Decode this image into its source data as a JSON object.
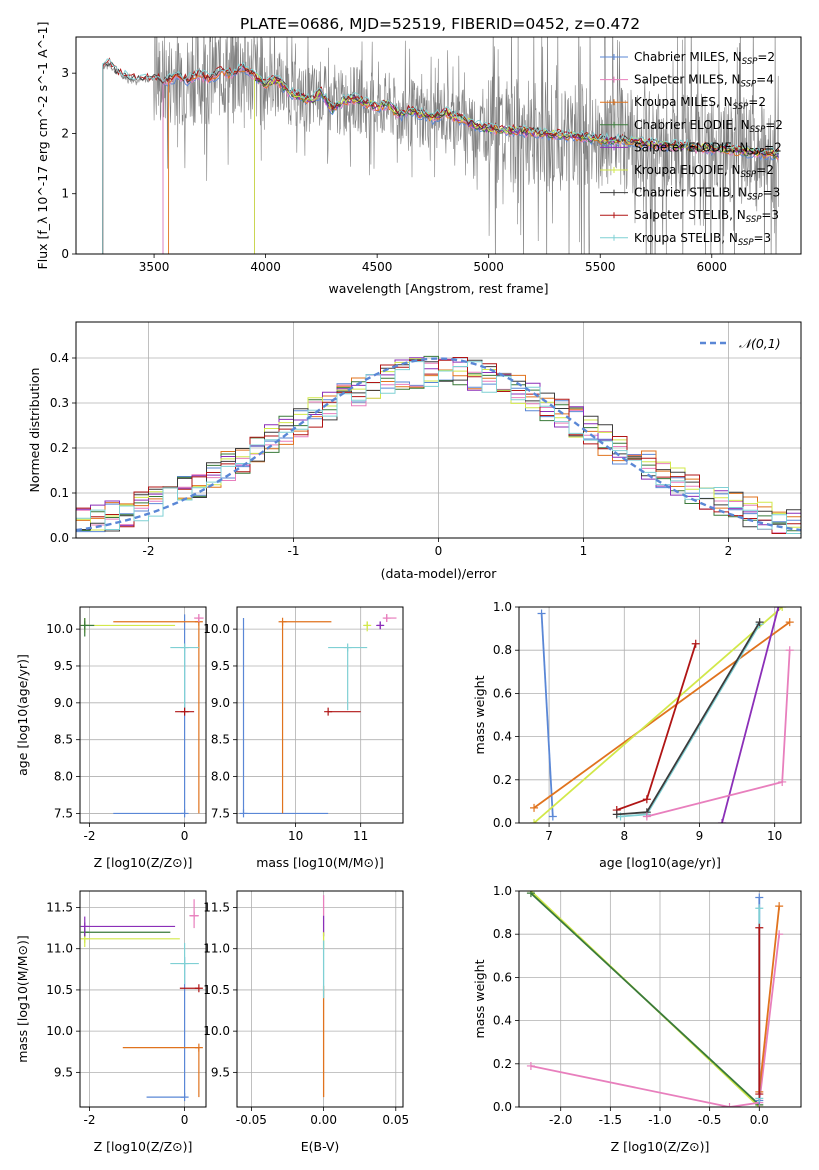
{
  "figure": {
    "title": "PLATE=0686, MJD=52519, FIBERID=0452, z=0.472"
  },
  "chart_data": [
    {
      "id": "spectrum",
      "type": "line",
      "xlabel": "wavelength [Angstrom, rest frame]",
      "ylabel": "Flux [f_λ 10^-17 erg cm^-2 s^-1 A^-1]",
      "xlim": [
        3150,
        6400
      ],
      "ylim": [
        0,
        3.6
      ],
      "xticks": [
        3500,
        4000,
        4500,
        5000,
        5500,
        6000
      ],
      "yticks": [
        0,
        1,
        2,
        3
      ],
      "legend_position": "top-right",
      "data_color": "#808080",
      "series": [
        {
          "name": "Chabrier MILES, N_SSP=2",
          "label_main": "Chabrier MILES, N",
          "label_sub": "SSP",
          "label_end": "=2",
          "color": "#5a87d6",
          "start": 3540
        },
        {
          "name": "Salpeter MILES, N_SSP=4",
          "label_main": "Salpeter MILES, N",
          "label_sub": "SSP",
          "label_end": "=4",
          "color": "#e87fbd",
          "start": 3540
        },
        {
          "name": "Kroupa MILES, N_SSP=2",
          "label_main": "Kroupa MILES, N",
          "label_sub": "SSP",
          "label_end": "=2",
          "color": "#e0731e",
          "start": 3565
        },
        {
          "name": "Chabrier ELODIE, N_SSP=2",
          "label_main": "Chabrier ELODIE, N",
          "label_sub": "SSP",
          "label_end": "=2",
          "color": "#3a7a3a",
          "start": 3950
        },
        {
          "name": "Salpeter ELODIE, N_SSP=2",
          "label_main": "Salpeter ELODIE, N",
          "label_sub": "SSP",
          "label_end": "=2",
          "color": "#8b2fb8",
          "start": 3950
        },
        {
          "name": "Kroupa ELODIE, N_SSP=2",
          "label_main": "Kroupa ELODIE, N",
          "label_sub": "SSP",
          "label_end": "=2",
          "color": "#d2e84a",
          "start": 3950
        },
        {
          "name": "Chabrier STELIB, N_SSP=3",
          "label_main": "Chabrier STELIB, N",
          "label_sub": "SSP",
          "label_end": "=3",
          "color": "#3c3c3c",
          "start": 3270
        },
        {
          "name": "Salpeter STELIB, N_SSP=3",
          "label_main": "Salpeter STELIB, N",
          "label_sub": "SSP",
          "label_end": "=3",
          "color": "#b01515",
          "start": 3270
        },
        {
          "name": "Kroupa STELIB, N_SSP=3",
          "label_main": "Kroupa STELIB, N",
          "label_sub": "SSP",
          "label_end": "=3",
          "color": "#7fd0d4",
          "start": 3270
        }
      ],
      "model_shape": {
        "x": [
          3270,
          3300,
          3320,
          3360,
          3400,
          3450,
          3500,
          3550,
          3600,
          3650,
          3700,
          3750,
          3800,
          3850,
          3900,
          3950,
          4000,
          4050,
          4100,
          4150,
          4200,
          4250,
          4300,
          4350,
          4400,
          4450,
          4500,
          4550,
          4600,
          4650,
          4700,
          4750,
          4800,
          4850,
          4900,
          4950,
          5000,
          5100,
          5200,
          5300,
          5400,
          5500,
          5600,
          5700,
          5800,
          5900,
          6000,
          6100,
          6200,
          6300
        ],
        "y": [
          3.1,
          3.15,
          3.05,
          2.95,
          2.9,
          2.88,
          2.92,
          2.85,
          2.95,
          2.88,
          2.98,
          2.9,
          3.05,
          2.98,
          3.1,
          2.95,
          2.82,
          2.9,
          2.7,
          2.62,
          2.55,
          2.68,
          2.4,
          2.55,
          2.58,
          2.5,
          2.45,
          2.48,
          2.3,
          2.38,
          2.32,
          2.25,
          2.35,
          2.28,
          2.2,
          2.12,
          2.08,
          2.05,
          2.02,
          1.98,
          1.95,
          1.9,
          1.88,
          1.85,
          1.8,
          1.78,
          1.75,
          1.72,
          1.68,
          1.65
        ]
      }
    },
    {
      "id": "residuals",
      "type": "line",
      "xlabel": "(data-model)/error",
      "ylabel": "Normed distribution",
      "xlim": [
        -2.5,
        2.5
      ],
      "ylim": [
        0,
        0.48
      ],
      "xticks": [
        -2,
        -1,
        0,
        1,
        2
      ],
      "yticks": [
        0.0,
        0.1,
        0.2,
        0.3,
        0.4
      ],
      "grid": true,
      "legend_position": "top-right",
      "reference": {
        "name": "𝒩(0,1)",
        "color": "#5a87d6",
        "dash": "6,4"
      },
      "bin_width": 0.1
    },
    {
      "id": "age-vs-Z",
      "type": "scatter",
      "xlabel": "Z [log10(Z/Z⊙)]",
      "ylabel": "age [log10(age/yr)]",
      "xlim": [
        -2.2,
        0.45
      ],
      "ylim": [
        7.37,
        10.3
      ],
      "xticks": [
        -2,
        0
      ],
      "yticks": [
        7.5,
        8.0,
        8.5,
        9.0,
        9.5,
        10.0
      ],
      "grid": true,
      "points": [
        {
          "series": "Chabrier MILES",
          "x": 0.0,
          "y": 7.5,
          "xerr": [
            0.0,
            0.0
          ],
          "yerr": [
            0.0,
            2.7
          ],
          "hline": [
            -1.5,
            0.0
          ]
        },
        {
          "series": "Kroupa MILES",
          "x": 0.3,
          "y": 10.1,
          "xerr": [
            1.8,
            0.0
          ],
          "yerr": [
            2.6,
            0.0
          ]
        },
        {
          "series": "Salpeter MILES",
          "x": 0.3,
          "y": 10.15,
          "xerr": [
            0.1,
            0.1
          ],
          "yerr": [
            0.05,
            0.05
          ]
        },
        {
          "series": "Kroupa ELODIE",
          "x": -2.1,
          "y": 10.05,
          "xerr": [
            0.0,
            1.9
          ],
          "yerr": [
            0.1,
            0.1
          ]
        },
        {
          "series": "Chabrier ELODIE",
          "x": -2.1,
          "y": 10.05,
          "xerr": [
            0.0,
            0.2
          ],
          "yerr": [
            0.15,
            0.1
          ]
        },
        {
          "series": "Kroupa STELIB",
          "x": 0.0,
          "y": 9.75,
          "xerr": [
            0.3,
            0.3
          ],
          "yerr": [
            0.9,
            0.0
          ]
        },
        {
          "series": "Salpeter STELIB",
          "x": 0.0,
          "y": 8.88,
          "xerr": [
            0.2,
            0.2
          ],
          "yerr": [
            0.0,
            0.0
          ]
        }
      ]
    },
    {
      "id": "age-vs-mass",
      "type": "scatter",
      "xlabel": "mass [log10(M/M⊙)]",
      "ylabel": "",
      "xlim": [
        9.1,
        11.65
      ],
      "ylim": [
        7.37,
        10.3
      ],
      "xticks": [
        10,
        11
      ],
      "yticks": [
        7.5,
        8.0,
        8.5,
        9.0,
        9.5,
        10.0
      ],
      "grid": true,
      "points": [
        {
          "series": "Chabrier MILES",
          "x": 9.2,
          "y": 7.5,
          "xerr": [
            0.0,
            1.3
          ],
          "yerr": [
            0.0,
            2.65
          ]
        },
        {
          "series": "Kroupa MILES",
          "x": 9.8,
          "y": 10.1,
          "xerr": [
            0.0,
            0.75
          ],
          "yerr": [
            2.6,
            0.0
          ]
        },
        {
          "series": "Salpeter MILES",
          "x": 11.4,
          "y": 10.15,
          "xerr": [
            0.05,
            0.15
          ],
          "yerr": [
            0.05,
            0.05
          ]
        },
        {
          "series": "Kroupa ELODIE",
          "x": 11.1,
          "y": 10.05,
          "xerr": [
            0.05,
            0.05
          ],
          "yerr": [
            0.08,
            0.05
          ]
        },
        {
          "series": "Salpeter ELODIE",
          "x": 11.3,
          "y": 10.05,
          "xerr": [
            0.05,
            0.05
          ],
          "yerr": [
            0.05,
            0.05
          ]
        },
        {
          "series": "Kroupa STELIB",
          "x": 10.8,
          "y": 9.75,
          "xerr": [
            0.3,
            0.3
          ],
          "yerr": [
            0.85,
            0.0
          ]
        },
        {
          "series": "Salpeter STELIB",
          "x": 10.5,
          "y": 8.88,
          "xerr": [
            0.0,
            0.5
          ],
          "yerr": [
            0.0,
            0.0
          ]
        }
      ]
    },
    {
      "id": "massweight-vs-age",
      "type": "line",
      "xlabel": "age [log10(age/yr)]",
      "ylabel": "mass weight",
      "xlim": [
        6.6,
        10.35
      ],
      "ylim": [
        0,
        1.0
      ],
      "xticks": [
        7,
        8,
        9,
        10
      ],
      "yticks": [
        0.0,
        0.2,
        0.4,
        0.6,
        0.8,
        1.0
      ],
      "grid": true,
      "lines": [
        {
          "series": "Chabrier MILES",
          "x": [
            6.9,
            7.05
          ],
          "y": [
            0.97,
            0.03
          ]
        },
        {
          "series": "Kroupa MILES",
          "x": [
            6.8,
            10.2
          ],
          "y": [
            0.07,
            0.93
          ]
        },
        {
          "series": "Kroupa ELODIE",
          "x": [
            6.8,
            10.1
          ],
          "y": [
            0.0,
            1.0
          ]
        },
        {
          "series": "Salpeter STELIB",
          "x": [
            7.9,
            8.3,
            8.95
          ],
          "y": [
            0.06,
            0.11,
            0.83
          ]
        },
        {
          "series": "Kroupa STELIB",
          "x": [
            7.95,
            8.3,
            9.8
          ],
          "y": [
            0.03,
            0.04,
            0.92
          ]
        },
        {
          "series": "Chabrier STELIB",
          "x": [
            7.9,
            8.3,
            9.8
          ],
          "y": [
            0.04,
            0.05,
            0.93
          ]
        },
        {
          "series": "Salpeter ELODIE",
          "x": [
            9.3,
            10.05
          ],
          "y": [
            0.0,
            1.0
          ]
        },
        {
          "series": "Salpeter MILES",
          "x": [
            8.3,
            10.1,
            10.2
          ],
          "y": [
            0.03,
            0.19,
            0.8
          ]
        }
      ]
    },
    {
      "id": "mass-vs-Z",
      "type": "scatter",
      "xlabel": "Z [log10(Z/Z⊙)]",
      "ylabel": "mass [log10(M/M⊙)]",
      "xlim": [
        -2.2,
        0.45
      ],
      "ylim": [
        9.08,
        11.7
      ],
      "xticks": [
        -2,
        0
      ],
      "yticks": [
        9.5,
        10.0,
        10.5,
        11.0,
        11.5
      ],
      "grid": true,
      "points": [
        {
          "series": "Chabrier MILES",
          "x": 0.0,
          "y": 9.2,
          "xerr": [
            0.8,
            0.0
          ],
          "yerr": [
            0.0,
            1.7
          ]
        },
        {
          "series": "Kroupa MILES",
          "x": 0.3,
          "y": 9.8,
          "xerr": [
            1.6,
            0.0
          ],
          "yerr": [
            0.6,
            0.0
          ]
        },
        {
          "series": "Salpeter STELIB",
          "x": 0.3,
          "y": 10.52,
          "xerr": [
            0.4,
            0.0
          ],
          "yerr": [
            0.0,
            0.0
          ]
        },
        {
          "series": "Kroupa STELIB",
          "x": 0.0,
          "y": 10.82,
          "xerr": [
            0.3,
            0.3
          ],
          "yerr": [
            0.25,
            0.25
          ]
        },
        {
          "series": "Kroupa ELODIE",
          "x": -2.1,
          "y": 11.12,
          "xerr": [
            0.0,
            2.0
          ],
          "yerr": [
            0.1,
            0.1
          ]
        },
        {
          "series": "Chabrier ELODIE",
          "x": -2.1,
          "y": 11.2,
          "xerr": [
            0.0,
            1.8
          ],
          "yerr": [
            0.05,
            0.05
          ]
        },
        {
          "series": "Salpeter ELODIE",
          "x": -2.1,
          "y": 11.27,
          "xerr": [
            0.0,
            1.9
          ],
          "yerr": [
            0.12,
            0.12
          ]
        },
        {
          "series": "Salpeter MILES",
          "x": 0.2,
          "y": 11.4,
          "xerr": [
            0.1,
            0.1
          ],
          "yerr": [
            0.15,
            0.2
          ]
        }
      ]
    },
    {
      "id": "mass-vs-ebv",
      "type": "scatter",
      "xlabel": "E(B-V)",
      "ylabel": "",
      "xlim": [
        -0.06,
        0.055
      ],
      "ylim": [
        9.08,
        11.7
      ],
      "xticks": [
        -0.05,
        0.0,
        0.05
      ],
      "yticks": [
        9.5,
        10.0,
        10.5,
        11.0,
        11.5
      ],
      "grid": true,
      "segments": [
        {
          "series": "Kroupa MILES",
          "x": 0.0,
          "y0": 9.2,
          "y1": 10.55
        },
        {
          "series": "Salpeter MILES",
          "x": 0.0,
          "y0": 11.4,
          "y1": 11.65
        },
        {
          "series": "Salpeter ELODIE",
          "x": 0.0,
          "y0": 11.15,
          "y1": 11.4
        },
        {
          "series": "Kroupa ELODIE",
          "x": 0.0,
          "y0": 11.0,
          "y1": 11.2
        },
        {
          "series": "Kroupa STELIB",
          "x": 0.0,
          "y0": 10.4,
          "y1": 11.1
        }
      ]
    },
    {
      "id": "massweight-vs-Z",
      "type": "line",
      "xlabel": "Z [log10(Z/Z⊙)]",
      "ylabel": "mass weight",
      "xlim": [
        -2.42,
        0.42
      ],
      "ylim": [
        0,
        1.0
      ],
      "xticks": [
        -2.0,
        -1.5,
        -1.0,
        -0.5,
        0.0
      ],
      "yticks": [
        0.0,
        0.2,
        0.4,
        0.6,
        0.8,
        1.0
      ],
      "grid": true,
      "lines": [
        {
          "series": "Kroupa ELODIE",
          "x": [
            -2.3,
            0.0
          ],
          "y": [
            1.0,
            0.0
          ]
        },
        {
          "series": "Chabrier ELODIE",
          "x": [
            -2.3,
            0.0
          ],
          "y": [
            0.99,
            0.01
          ]
        },
        {
          "series": "Salpeter MILES",
          "x": [
            -2.3,
            -0.3,
            0.0,
            0.2
          ],
          "y": [
            0.19,
            0.0,
            0.02,
            0.8
          ]
        },
        {
          "series": "Kroupa MILES",
          "x": [
            0.0,
            0.2
          ],
          "y": [
            0.07,
            0.93
          ]
        },
        {
          "series": "Chabrier MILES",
          "x": [
            0.0,
            0.0
          ],
          "y": [
            0.03,
            0.97
          ]
        },
        {
          "series": "Kroupa STELIB",
          "x": [
            0.0,
            0.0
          ],
          "y": [
            0.04,
            0.92
          ]
        },
        {
          "series": "Salpeter STELIB",
          "x": [
            0.0,
            0.0
          ],
          "y": [
            0.06,
            0.83
          ]
        }
      ]
    }
  ]
}
